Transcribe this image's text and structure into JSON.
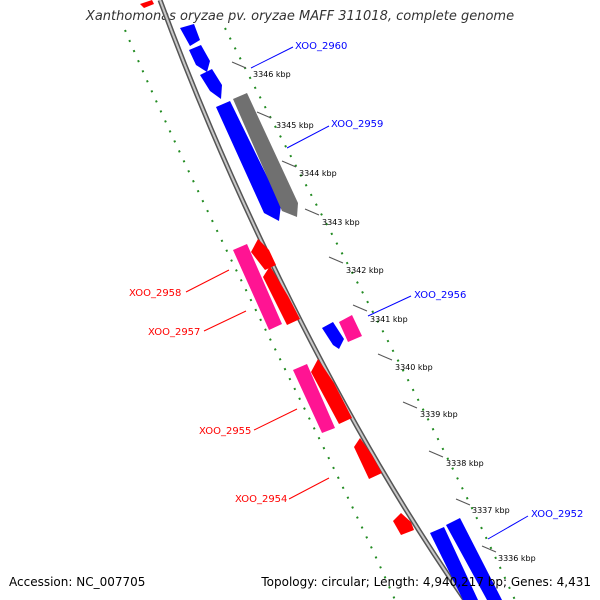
{
  "title": "Xanthomonas oryzae pv. oryzae MAFF 311018, complete genome",
  "footer": {
    "accession": "Accession: NC_007705",
    "summary": "Topology: circular; Length: 4,940,217 bp; Genes: 4,431"
  },
  "ticks": [
    "3346 kbp",
    "3345 kbp",
    "3344 kbp",
    "3343 kbp",
    "3342 kbp",
    "3341 kbp",
    "3340 kbp",
    "3339 kbp",
    "3338 kbp",
    "3337 kbp",
    "3336 kbp"
  ],
  "gene_labels": {
    "xoo_2960": "XOO_2960",
    "xoo_2959": "XOO_2959",
    "xoo_2958": "XOO_2958",
    "xoo_2957": "XOO_2957",
    "xoo_2956": "XOO_2956",
    "xoo_2955": "XOO_2955",
    "xoo_2954": "XOO_2954",
    "xoo_2952": "XOO_2952"
  },
  "colors": {
    "forward_strand": "#0000ff",
    "reverse_strand": "#ff0000",
    "pink_feature": "#ff1493",
    "grey_feature": "#666666",
    "backbone": "#999999",
    "dotted_guide": "#228b22",
    "tick_line": "#555555"
  }
}
